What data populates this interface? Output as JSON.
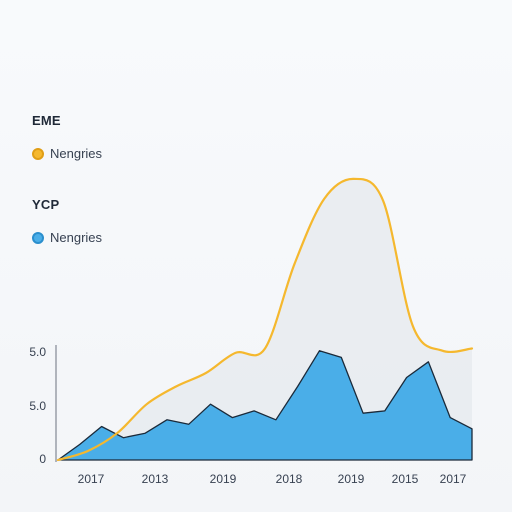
{
  "legend": [
    {
      "title": "EME",
      "label": "Nengries",
      "color": "#f5b82e"
    },
    {
      "title": "YCP",
      "label": "Nengries",
      "color": "#4aaee8"
    }
  ],
  "chart_data": {
    "type": "area",
    "title": "",
    "xlabel": "",
    "ylabel": "",
    "x_tick_labels": [
      "2017",
      "2013",
      "2019",
      "2018",
      "2019",
      "2015",
      "2017"
    ],
    "y_tick_labels": [
      "0",
      "5.0",
      "5.0"
    ],
    "grid": false,
    "legend_position": "left",
    "series": [
      {
        "name": "Nengries",
        "color": "#f5b82e",
        "style": "line",
        "values": [
          0,
          0.4,
          1.2,
          2.5,
          3.3,
          3.9,
          4.8,
          5.0,
          8.8,
          11.7,
          12.6,
          11.6,
          6.0,
          4.9,
          5.0
        ]
      },
      {
        "name": "Nengries",
        "color": "#4aaee8",
        "style": "area",
        "values": [
          0,
          0.7,
          1.5,
          1.0,
          1.2,
          1.8,
          1.6,
          2.5,
          1.9,
          2.2,
          1.8,
          3.3,
          4.9,
          4.6,
          2.1,
          2.2,
          3.7,
          4.4,
          1.9,
          1.4
        ]
      }
    ]
  }
}
